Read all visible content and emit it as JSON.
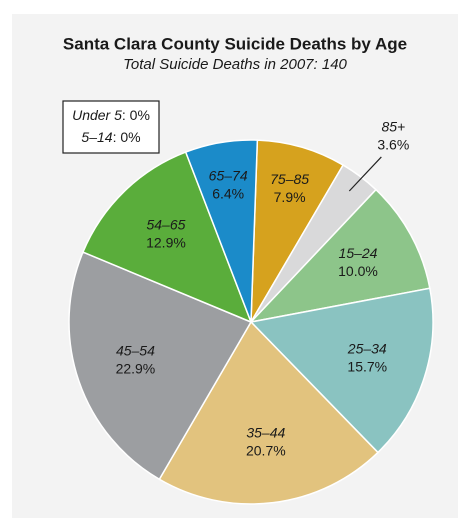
{
  "chart_data": {
    "type": "pie",
    "title": "Santa Clara County Suicide Deaths by Age",
    "subtitle": "Total Suicide Deaths in 2007: 140",
    "categories": [
      "75–85",
      "85+",
      "15–24",
      "25–34",
      "35–44",
      "45–54",
      "54–65",
      "65–74"
    ],
    "values": [
      7.9,
      3.6,
      10.0,
      15.7,
      20.7,
      22.9,
      12.9,
      6.4
    ],
    "value_labels": [
      "7.9%",
      "3.6%",
      "10.0%",
      "15.7%",
      "20.7%",
      "22.9%",
      "12.9%",
      "6.4%"
    ],
    "colors": [
      "#d6a21e",
      "#d9d9da",
      "#8dc58a",
      "#8ac3c1",
      "#e2c37e",
      "#9c9ea1",
      "#5aad3b",
      "#1b8bc9"
    ],
    "inset": {
      "categories": [
        "Under 5",
        "5–14"
      ],
      "values": [
        0,
        0
      ],
      "value_labels": [
        "0%",
        "0%"
      ]
    }
  }
}
